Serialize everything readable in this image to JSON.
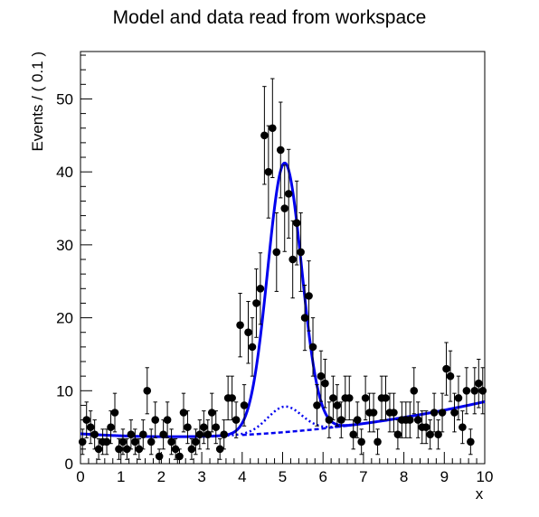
{
  "chart_data": {
    "type": "scatter",
    "title": "Model and data read from workspace",
    "xlabel": "x",
    "ylabel": "Events / ( 0.1 )",
    "xlim": [
      0,
      10
    ],
    "ylim": [
      0,
      56.5
    ],
    "x_ticks": [
      0,
      1,
      2,
      3,
      4,
      5,
      6,
      7,
      8,
      9,
      10
    ],
    "y_ticks": [
      0,
      10,
      20,
      30,
      40,
      50
    ],
    "grid": false,
    "legend": "none",
    "series": [
      {
        "kind": "data-points-with-errors",
        "color": "#000000",
        "x": [
          0.05,
          0.15,
          0.25,
          0.35,
          0.45,
          0.55,
          0.65,
          0.75,
          0.85,
          0.95,
          1.05,
          1.15,
          1.25,
          1.35,
          1.45,
          1.55,
          1.65,
          1.75,
          1.85,
          1.95,
          2.05,
          2.15,
          2.25,
          2.35,
          2.45,
          2.55,
          2.65,
          2.75,
          2.85,
          2.95,
          3.05,
          3.15,
          3.25,
          3.35,
          3.45,
          3.55,
          3.65,
          3.75,
          3.85,
          3.95,
          4.05,
          4.15,
          4.25,
          4.35,
          4.45,
          4.55,
          4.65,
          4.75,
          4.85,
          4.95,
          5.05,
          5.15,
          5.25,
          5.35,
          5.45,
          5.55,
          5.65,
          5.75,
          5.85,
          5.95,
          6.05,
          6.15,
          6.25,
          6.35,
          6.45,
          6.55,
          6.65,
          6.75,
          6.85,
          6.95,
          7.05,
          7.15,
          7.25,
          7.35,
          7.45,
          7.55,
          7.65,
          7.75,
          7.85,
          7.95,
          8.05,
          8.15,
          8.25,
          8.35,
          8.45,
          8.55,
          8.65,
          8.75,
          8.85,
          8.95,
          9.05,
          9.15,
          9.25,
          9.35,
          9.45,
          9.55,
          9.65,
          9.75,
          9.85,
          9.95
        ],
        "y": [
          3,
          6,
          5,
          4,
          2,
          3,
          3,
          5,
          7,
          2,
          3,
          2,
          4,
          3,
          2,
          4,
          10,
          3,
          6,
          1,
          4,
          6,
          3,
          2,
          1,
          7,
          5,
          2,
          3,
          4,
          5,
          4,
          7,
          5,
          2,
          4,
          9,
          9,
          6,
          19,
          8,
          18,
          16,
          22,
          24,
          45,
          40,
          46,
          29,
          43,
          35,
          37,
          28,
          33,
          29,
          20,
          23,
          16,
          8,
          12,
          11,
          6,
          9,
          8,
          6,
          9,
          9,
          4,
          6,
          3,
          9,
          7,
          7,
          3,
          9,
          9,
          7,
          7,
          4,
          6,
          6,
          6,
          10,
          6,
          5,
          5,
          4,
          7,
          4,
          7,
          13,
          12,
          7,
          9,
          5,
          10,
          3,
          10,
          11,
          10
        ]
      },
      {
        "kind": "model-total",
        "style": "solid",
        "color": "#0000ee",
        "formula": "background + signal",
        "peak": 40.7
      },
      {
        "kind": "model-component",
        "style": "dotted",
        "color": "#0000ee",
        "peak": 7.5
      },
      {
        "kind": "model-component",
        "style": "dashed",
        "color": "#0000ee",
        "start": 4.0,
        "end": 8.8
      }
    ]
  }
}
